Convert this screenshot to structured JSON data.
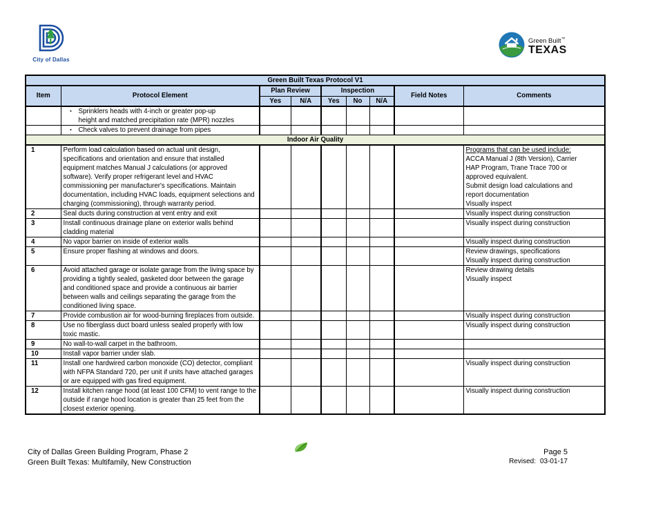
{
  "colors": {
    "header_bg": "#c6d9f1",
    "section_bg": "#ebf1dd",
    "border": "#000000",
    "dallas_blue": "#1c4ea0",
    "dallas_green": "#2f9e41",
    "gbt_blue": "#1f77b5",
    "gbt_green": "#3a9a3f",
    "leaf_green": "#52a829"
  },
  "logos": {
    "city_of_dallas_caption": "City of Dallas",
    "green_built_name": "Green Built",
    "green_built_tm": "™",
    "green_built_region": "TEXAS"
  },
  "table": {
    "title": "Green Built Texas Protocol V1",
    "headers": {
      "item": "Item",
      "protocol_element": "Protocol Element",
      "plan_review": "Plan Review",
      "inspection": "Inspection",
      "field_notes": "Field Notes",
      "comments": "Comments",
      "plan_yes": "Yes",
      "plan_na": "N/A",
      "insp_yes": "Yes",
      "insp_no": "No",
      "insp_na": "N/A"
    },
    "carryover_rows": [
      {
        "lines": [
          "Sprinklers heads with 4-inch or greater pop-up",
          "height and matched precipitation rate (MPR) nozzles"
        ]
      },
      {
        "lines": [
          "Check valves to prevent drainage from pipes"
        ]
      }
    ],
    "section_title": "Indoor Air Quality",
    "rows": [
      {
        "item": "1",
        "protocol": "Perform load calculation based on actual unit design, specifications and orientation and ensure that installed equipment matches Manual J calculations (or approved software). Verify proper refrigerant level and HVAC commissioning per manufacturer's specifications. Maintain documentation, including HVAC loads, equipment selections and charging (commissioning), through warranty period.",
        "comments": [
          {
            "t": "Programs that can be used include:",
            "u": true
          },
          "ACCA Manual J (8th Version), Carrier",
          "HAP Program, Trane Trace 700 or",
          "approved equivalent.",
          " Submit design load calculations and",
          "report documentation",
          "Visually inspect"
        ]
      },
      {
        "item": "2",
        "protocol": "Seal ducts during construction at vent entry and exit",
        "comments": [
          "Visually inspect during construction"
        ]
      },
      {
        "item": "3",
        "protocol": "Install continuous drainage plane on exterior walls behind cladding material",
        "comments": [
          "Visually inspect during construction"
        ]
      },
      {
        "item": "4",
        "protocol": "No vapor barrier on inside of exterior walls",
        "comments": [
          "Visually inspect during construction"
        ]
      },
      {
        "item": "5",
        "protocol": "Ensure proper flashing at windows and doors.",
        "comments": [
          "Review drawings, specifications",
          "Visually inspect during construction"
        ]
      },
      {
        "item": "6",
        "protocol": "Avoid attached garage or isolate garage from the living space by providing a tightly sealed, gasketed door between the garage and conditioned space and provide a continuous air barrier between walls and ceilings separating the garage from the conditioned living space.",
        "comments": [
          "Review drawing details",
          "Visually inspect"
        ]
      },
      {
        "item": "7",
        "protocol": "Provide combustion air for wood-burning fireplaces from outside.",
        "comments": [
          "Visually inspect during construction"
        ]
      },
      {
        "item": "8",
        "protocol": "Use no fiberglass duct board unless sealed properly with low toxic mastic.",
        "comments": [
          "Visually inspect during construction"
        ]
      },
      {
        "item": "9",
        "protocol": "No wall-to-wall carpet in the bathroom.",
        "comments": []
      },
      {
        "item": "10",
        "protocol": "Install vapor barrier under slab.",
        "comments": []
      },
      {
        "item": "11",
        "protocol": "Install one hardwired carbon monoxide (CO) detector, compliant with NFPA Standard 720, per unit if units have attached garages or are equipped with gas fired equipment.",
        "comments": [
          "Visually inspect during construction"
        ]
      },
      {
        "item": "12",
        "protocol": "Install kitchen range hood (at least 100 CFM) to vent range to the outside if range hood location is greater than 25 feet from the closest exterior opening.",
        "comments": [
          "Visually inspect during construction"
        ]
      }
    ]
  },
  "footer": {
    "line1": "City of Dallas Green Building Program, Phase 2",
    "line2": "Green Built Texas: Multifamily, New Construction",
    "page": "Page 5",
    "revised_label": "Revised:",
    "revised_date": "03-01-17"
  }
}
